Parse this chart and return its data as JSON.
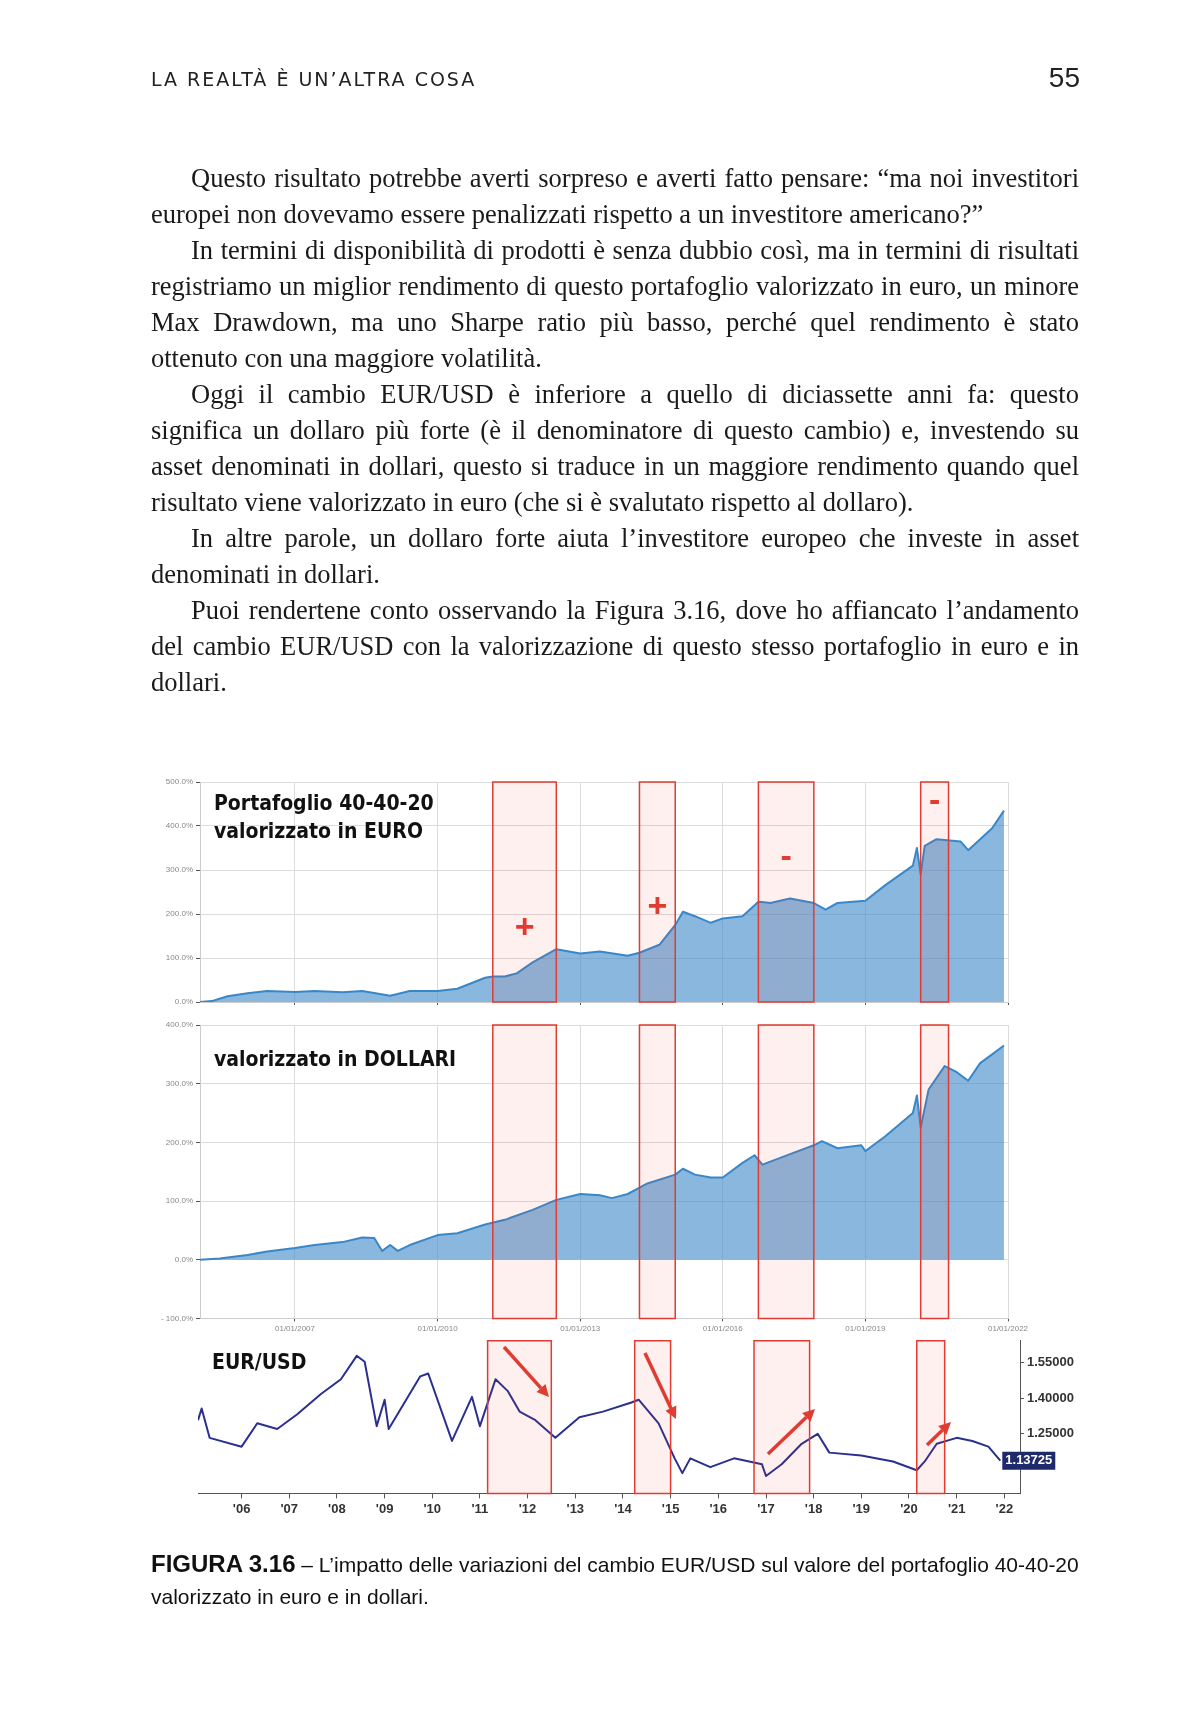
{
  "chart_data": [
    {
      "type": "area",
      "title": "Portafoglio 40-40-20\nvalorizzato in EURO",
      "annotations": [
        "LA REALTÀ È UN’ALTRA COSA",
        "55",
        "Questo risultato potrebbe averti sorpreso e averti fatto pensare: “ma noi investitori europei non dovevamo essere penalizzati rispetto a un investitore americano?”",
        "In termini di disponibilità di prodotti è senza dubbio così, ma in termini di risultati registriamo un miglior rendimento di questo portafoglio valorizzato in euro, un minore Max Drawdown, ma uno Sharpe ratio più basso, perché quel rendimento è stato ottenuto con una maggiore volatilità.",
        "Oggi il cambio EUR/USD è inferiore a quello di diciassette anni fa: questo significa un dollaro più forte (è il denominatore di questo cambio) e, investendo su asset denominati in dollari, questo si traduce in un maggiore rendimento quando quel risultato viene valorizzato in euro (che si è svalutato rispetto al dollaro).",
        "In altre parole, un dollaro forte aiuta l’investitore europeo che investe in asset denominati in dollari.",
        "Puoi rendertene conto osservando la Figura 3.16, dove ho affiancato l’andamento del cambio EUR/USD con la valorizzazione di questo stesso portafoglio in euro e in dollari."
      ],
      "xlim": [
        "2005-01-01",
        "2022-01-01"
      ],
      "xticks": [
        {
          "value": "2007-01-01",
          "label": null
        },
        {
          "value": "2010-01-01",
          "label": null
        },
        {
          "value": "2013-01-01",
          "label": null
        },
        {
          "value": "2016-01-01",
          "label": null
        },
        {
          "value": "2019-01-01",
          "label": null
        },
        {
          "value": "2022-01-01",
          "label": null
        }
      ],
      "ylim": [
        0,
        500
      ],
      "yticks": [
        {
          "value": 0,
          "label": "0.0%"
        },
        {
          "value": 100,
          "label": "100.0%"
        },
        {
          "value": 200,
          "label": "200.0%"
        },
        {
          "value": 300,
          "label": "300.0%"
        },
        {
          "value": 400,
          "label": "400.0%"
        },
        {
          "value": 500,
          "label": "500.0%"
        }
      ],
      "tick_labels": "y",
      "grid": true,
      "bands": [
        {
          "axis": "x",
          "from": "2011-03",
          "to": "2012-07",
          "color": "#e03c31",
          "label": "+"
        },
        {
          "axis": "x",
          "from": "2014-04",
          "to": "2015-01",
          "color": "#e03c31",
          "label": "+"
        },
        {
          "axis": "x",
          "from": "2016-10",
          "to": "2017-12",
          "color": "#e03c31",
          "label": "-"
        },
        {
          "axis": "x",
          "from": "2020-03",
          "to": "2020-10",
          "color": "#e03c31",
          "label": "-"
        }
      ],
      "series": [
        {
          "color": "#3a87c8",
          "x": [
            "2005-01",
            "2005-04",
            "2005-08",
            "2006-01",
            "2006-06",
            "2007-01",
            "2007-06",
            "2008-01",
            "2008-06",
            "2009-01",
            "2009-06",
            "2010-01",
            "2010-06",
            "2011-01",
            "2011-03",
            "2011-06",
            "2011-09",
            "2012-01",
            "2012-07",
            "2013-01",
            "2013-06",
            "2014-01",
            "2014-04",
            "2014-09",
            "2015-01",
            "2015-03",
            "2015-06",
            "2015-10",
            "2016-01",
            "2016-06",
            "2016-10",
            "2017-01",
            "2017-06",
            "2017-12",
            "2018-03",
            "2018-06",
            "2019-01",
            "2019-06",
            "2020-01",
            "2020-02",
            "2020-03",
            "2020-04",
            "2020-07",
            "2021-01",
            "2021-03",
            "2021-06",
            "2021-09",
            "2021-12"
          ],
          "values": [
            0,
            2,
            13,
            20,
            25,
            23,
            25,
            22,
            25,
            14,
            25,
            25,
            30,
            55,
            58,
            58,
            65,
            90,
            120,
            110,
            115,
            105,
            112,
            130,
            175,
            205,
            195,
            180,
            190,
            195,
            228,
            225,
            235,
            225,
            210,
            225,
            230,
            265,
            310,
            350,
            290,
            355,
            370,
            365,
            345,
            370,
            395,
            435
          ]
        }
      ]
    },
    {
      "type": "area",
      "title": "valorizzato in DOLLARI",
      "xlim": [
        "2005-01-01",
        "2022-01-01"
      ],
      "xticks": [
        {
          "value": "2007-01-01",
          "label": "01/01/2007"
        },
        {
          "value": "2010-01-01",
          "label": "01/01/2010"
        },
        {
          "value": "2013-01-01",
          "label": "01/01/2013"
        },
        {
          "value": "2016-01-01",
          "label": "01/01/2016"
        },
        {
          "value": "2019-01-01",
          "label": "01/01/2019"
        },
        {
          "value": "2022-01-01",
          "label": "01/01/2022"
        }
      ],
      "ylim": [
        -100,
        400
      ],
      "yticks": [
        {
          "value": -100,
          "label": "- 100.0%"
        },
        {
          "value": 0,
          "label": "0.0%"
        },
        {
          "value": 100,
          "label": "100.0%"
        },
        {
          "value": 200,
          "label": "200.0%"
        },
        {
          "value": 300,
          "label": "300.0%"
        },
        {
          "value": 400,
          "label": "400.0%"
        }
      ],
      "grid": true,
      "bands": [
        {
          "axis": "x",
          "from": "2011-03",
          "to": "2012-07",
          "color": "#e03c31"
        },
        {
          "axis": "x",
          "from": "2014-04",
          "to": "2015-01",
          "color": "#e03c31"
        },
        {
          "axis": "x",
          "from": "2016-10",
          "to": "2017-12",
          "color": "#e03c31"
        },
        {
          "axis": "x",
          "from": "2020-03",
          "to": "2020-10",
          "color": "#e03c31"
        }
      ],
      "series": [
        {
          "color": "#3a87c8",
          "x": [
            "2005-01",
            "2005-06",
            "2006-01",
            "2006-06",
            "2007-01",
            "2007-06",
            "2008-01",
            "2008-06",
            "2008-09",
            "2008-11",
            "2009-01",
            "2009-03",
            "2009-06",
            "2010-01",
            "2010-06",
            "2011-01",
            "2011-06",
            "2012-01",
            "2012-07",
            "2013-01",
            "2013-06",
            "2013-09",
            "2014-01",
            "2014-06",
            "2015-01",
            "2015-03",
            "2015-06",
            "2015-10",
            "2016-01",
            "2016-06",
            "2016-09",
            "2016-11",
            "2017-06",
            "2017-12",
            "2018-02",
            "2018-06",
            "2018-12",
            "2019-01",
            "2019-06",
            "2020-01",
            "2020-02",
            "2020-03",
            "2020-05",
            "2020-09",
            "2020-12",
            "2021-03",
            "2021-06",
            "2021-09",
            "2021-12"
          ],
          "values": [
            0,
            2,
            8,
            14,
            20,
            25,
            30,
            38,
            37,
            15,
            25,
            15,
            25,
            42,
            45,
            60,
            68,
            85,
            102,
            112,
            110,
            105,
            112,
            130,
            145,
            155,
            145,
            140,
            140,
            165,
            178,
            162,
            180,
            195,
            202,
            190,
            195,
            185,
            210,
            250,
            280,
            225,
            290,
            330,
            320,
            305,
            335,
            350,
            365
          ]
        }
      ]
    },
    {
      "type": "line",
      "title": "EUR/USD",
      "annotations": [
        "FIGURA 3.16",
        "– L’impatto delle variazioni del cambio EUR/USD sul valore del portafoglio 40-40-20 valorizzato in euro e in dollari."
      ],
      "xlim": [
        "2005-02-01",
        "2022-05-01"
      ],
      "xticks": [
        {
          "value": "2006-01-01",
          "label": "'06"
        },
        {
          "value": "2007-01-01",
          "label": "'07"
        },
        {
          "value": "2008-01-01",
          "label": "'08"
        },
        {
          "value": "2009-01-01",
          "label": "'09"
        },
        {
          "value": "2010-01-01",
          "label": "'10"
        },
        {
          "value": "2011-01-01",
          "label": "'11"
        },
        {
          "value": "2012-01-01",
          "label": "'12"
        },
        {
          "value": "2013-01-01",
          "label": "'13"
        },
        {
          "value": "2014-01-01",
          "label": "'14"
        },
        {
          "value": "2015-01-01",
          "label": "'15"
        },
        {
          "value": "2016-01-01",
          "label": "'16"
        },
        {
          "value": "2017-01-01",
          "label": "'17"
        },
        {
          "value": "2018-01-01",
          "label": "'18"
        },
        {
          "value": "2019-01-01",
          "label": "'19"
        },
        {
          "value": "2020-01-01",
          "label": "'20"
        },
        {
          "value": "2021-01-01",
          "label": "'21"
        },
        {
          "value": "2022-01-01",
          "label": "'22"
        }
      ],
      "y2lim": [
        1.0,
        1.64
      ],
      "y2ticks": [
        {
          "value": 1.25,
          "label": "1.25000"
        },
        {
          "value": 1.4,
          "label": "1.40000"
        },
        {
          "value": 1.55,
          "label": "1.55000"
        }
      ],
      "bands": [
        {
          "axis": "x",
          "from": "2011-03",
          "to": "2012-07",
          "color": "#e03c31"
        },
        {
          "axis": "x",
          "from": "2014-04",
          "to": "2015-01",
          "color": "#e03c31"
        },
        {
          "axis": "x",
          "from": "2016-10",
          "to": "2017-12",
          "color": "#e03c31"
        },
        {
          "axis": "x",
          "from": "2020-03",
          "to": "2020-10",
          "color": "#e03c31"
        }
      ],
      "series": [
        {
          "color": "#2b2f8f",
          "axis": "y2",
          "x": [
            "2005-02",
            "2005-03",
            "2005-05",
            "2006-01",
            "2006-05",
            "2006-10",
            "2007-03",
            "2007-09",
            "2008-02",
            "2008-06",
            "2008-08",
            "2008-11",
            "2009-01",
            "2009-02",
            "2009-10",
            "2009-12",
            "2010-06",
            "2010-11",
            "2011-01",
            "2011-05",
            "2011-08",
            "2011-11",
            "2012-03",
            "2012-08",
            "2013-02",
            "2013-08",
            "2014-03",
            "2014-05",
            "2014-10",
            "2015-02",
            "2015-04",
            "2015-06",
            "2015-11",
            "2016-05",
            "2016-12",
            "2017-01",
            "2017-05",
            "2017-10",
            "2018-02",
            "2018-05",
            "2019-01",
            "2019-09",
            "2020-03",
            "2020-05",
            "2020-08",
            "2021-01",
            "2021-05",
            "2021-09",
            "2021-12"
          ],
          "values": [
            1.307,
            1.356,
            1.233,
            1.196,
            1.294,
            1.27,
            1.331,
            1.417,
            1.479,
            1.577,
            1.552,
            1.282,
            1.393,
            1.27,
            1.491,
            1.503,
            1.22,
            1.405,
            1.282,
            1.479,
            1.43,
            1.343,
            1.307,
            1.233,
            1.319,
            1.343,
            1.38,
            1.393,
            1.294,
            1.147,
            1.085,
            1.147,
            1.11,
            1.147,
            1.122,
            1.073,
            1.122,
            1.208,
            1.25,
            1.171,
            1.159,
            1.134,
            1.097,
            1.134,
            1.208,
            1.233,
            1.22,
            1.196,
            1.13725
          ],
          "value_labels": [
            null,
            null,
            null,
            null,
            null,
            null,
            null,
            null,
            null,
            null,
            null,
            null,
            null,
            null,
            null,
            null,
            null,
            null,
            null,
            null,
            null,
            null,
            null,
            null,
            null,
            null,
            null,
            null,
            null,
            null,
            null,
            null,
            null,
            null,
            null,
            null,
            null,
            null,
            null,
            null,
            null,
            null,
            null,
            null,
            null,
            null,
            null,
            null,
            "1.13725"
          ]
        }
      ]
    }
  ]
}
